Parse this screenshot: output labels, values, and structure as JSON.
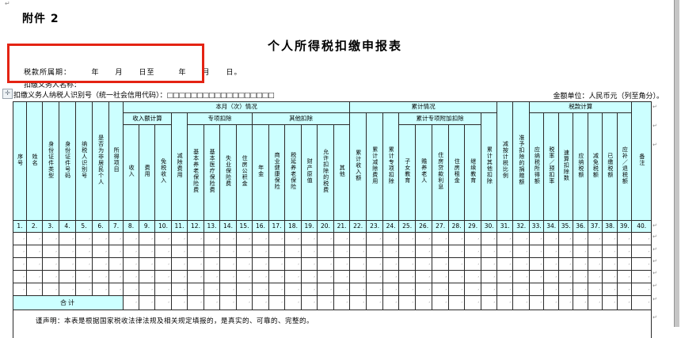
{
  "doc": {
    "pilcrow": "↵",
    "attachment": "附件 2",
    "title": "个人所得税扣缴申报表",
    "tax_period": "税款所属期：　　　年　　月　　日至　　　年　　月　　日。",
    "agent_name_label": "扣缴义务人名称：",
    "agent_tin_label": "扣缴义务人纳税人识别号（统一社会信用代码）：",
    "tin_boxes": "□□□□□□□□□□□□□□□□□□",
    "amount_unit": "金额单位：人民币元（列至角分）。",
    "declaration": "谨声明：本表是根据国家税收法律法规及相关规定填报的，是真实的、可靠的、完整的。"
  },
  "table": {
    "groups": {
      "month": "本月（次）情况",
      "cumulative": "累计情况",
      "tax_calc": "税款计算",
      "income_calc": "收入额计算",
      "special_deduction": "专项扣除",
      "other_deduction": "其他扣除",
      "cumulative_additional": "累计专项附加扣除"
    },
    "columns": [
      "序号",
      "姓名",
      "身份证件类型",
      "身份证件号码",
      "纳税人识别号",
      "是否为非居民个人",
      "所得项目",
      "收入",
      "费用",
      "免税收入",
      "减除费用",
      "基本养老保险费",
      "基本医疗保险费",
      "失业保险费",
      "住房公积金",
      "年金",
      "商业健康保险",
      "税延养老保险",
      "财产原值",
      "允许扣除的税费",
      "其他",
      "累计收入额",
      "累计减除费用",
      "累计专项扣除",
      "子女教育",
      "赡养老人",
      "住房贷款利息",
      "住房租金",
      "继续教育",
      "累计其他扣除",
      "减按计税比例",
      "准予扣除的捐赠额",
      "应纳税所得额",
      "税率／预扣率",
      "速算扣除数",
      "应纳税额",
      "减免税额",
      "已缴税额",
      "应补／退税额",
      "备注"
    ],
    "numbers": [
      "1.",
      "2.",
      "3.",
      "4.",
      "5.",
      "6.",
      "7.",
      "8.",
      "9.",
      "10.",
      "11.",
      "12.",
      "13.",
      "14.",
      "15.",
      "16.",
      "17.",
      "18.",
      "19.",
      "20.",
      "21.",
      "22.",
      "23.",
      "24.",
      "25.",
      "26.",
      "27.",
      "28.",
      "29.",
      "30.",
      "31.",
      "32.",
      "33.",
      "34.",
      "35.",
      "36.",
      "37.",
      "38.",
      "39.",
      "40."
    ],
    "total_label": "合计",
    "body_rows": 5,
    "cell_mark": ","
  },
  "colors": {
    "header_bg": "#ccffff",
    "annotation_red": "#e42313",
    "window_edge_gray": "#c6c6c6"
  },
  "icons": {
    "table_move_handle": "✛"
  }
}
